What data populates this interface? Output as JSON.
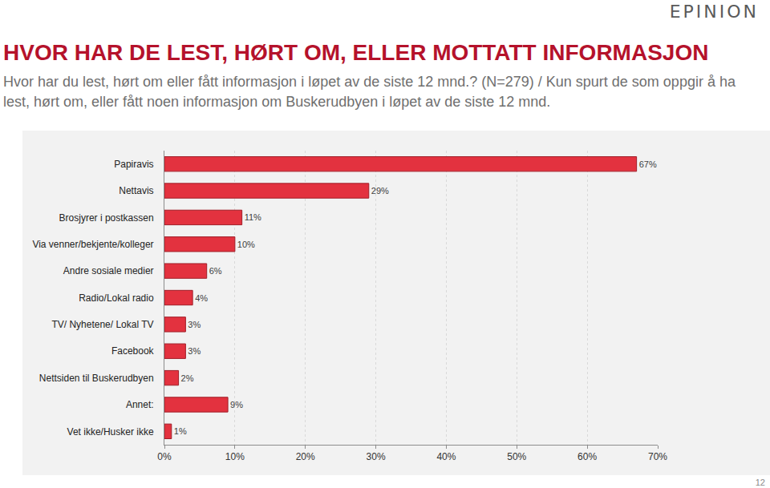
{
  "header": {
    "logo": "EPINION",
    "page_number": "12"
  },
  "chart_data": {
    "type": "bar",
    "orientation": "horizontal",
    "title": "HVOR HAR DE LEST, HØRT OM, ELLER MOTTATT INFORMASJON",
    "subtitle": "Hvor har du lest, hørt om eller fått informasjon i løpet av de siste 12 mnd.? (N=279) / Kun spurt de som oppgir å ha lest, hørt om, eller fått noen informasjon om Buskerudbyen i løpet av de siste 12 mnd.",
    "categories": [
      "Papiravis",
      "Nettavis",
      "Brosjyrer i postkassen",
      "Via venner/bekjente/kolleger",
      "Andre sosiale medier",
      "Radio/Lokal radio",
      "TV/ Nyhetene/ Lokal TV",
      "Facebook",
      "Nettsiden til Buskerudbyen",
      "Annet:",
      "Vet ikke/Husker ikke"
    ],
    "values": [
      67,
      29,
      11,
      10,
      6,
      4,
      3,
      3,
      2,
      9,
      1
    ],
    "value_labels": [
      "67%",
      "29%",
      "11%",
      "10%",
      "6%",
      "4%",
      "3%",
      "3%",
      "2%",
      "9%",
      "1%"
    ],
    "data_labels": true,
    "color": "#e3323f",
    "xlim": [
      0,
      70
    ],
    "xticks": [
      {
        "value": 0,
        "label": "0%"
      },
      {
        "value": 10,
        "label": "10%"
      },
      {
        "value": 20,
        "label": "20%"
      },
      {
        "value": 30,
        "label": "30%"
      },
      {
        "value": 40,
        "label": "40%"
      },
      {
        "value": 50,
        "label": "50%"
      },
      {
        "value": 60,
        "label": "60%"
      },
      {
        "value": 70,
        "label": "70%"
      }
    ],
    "grid": true
  }
}
